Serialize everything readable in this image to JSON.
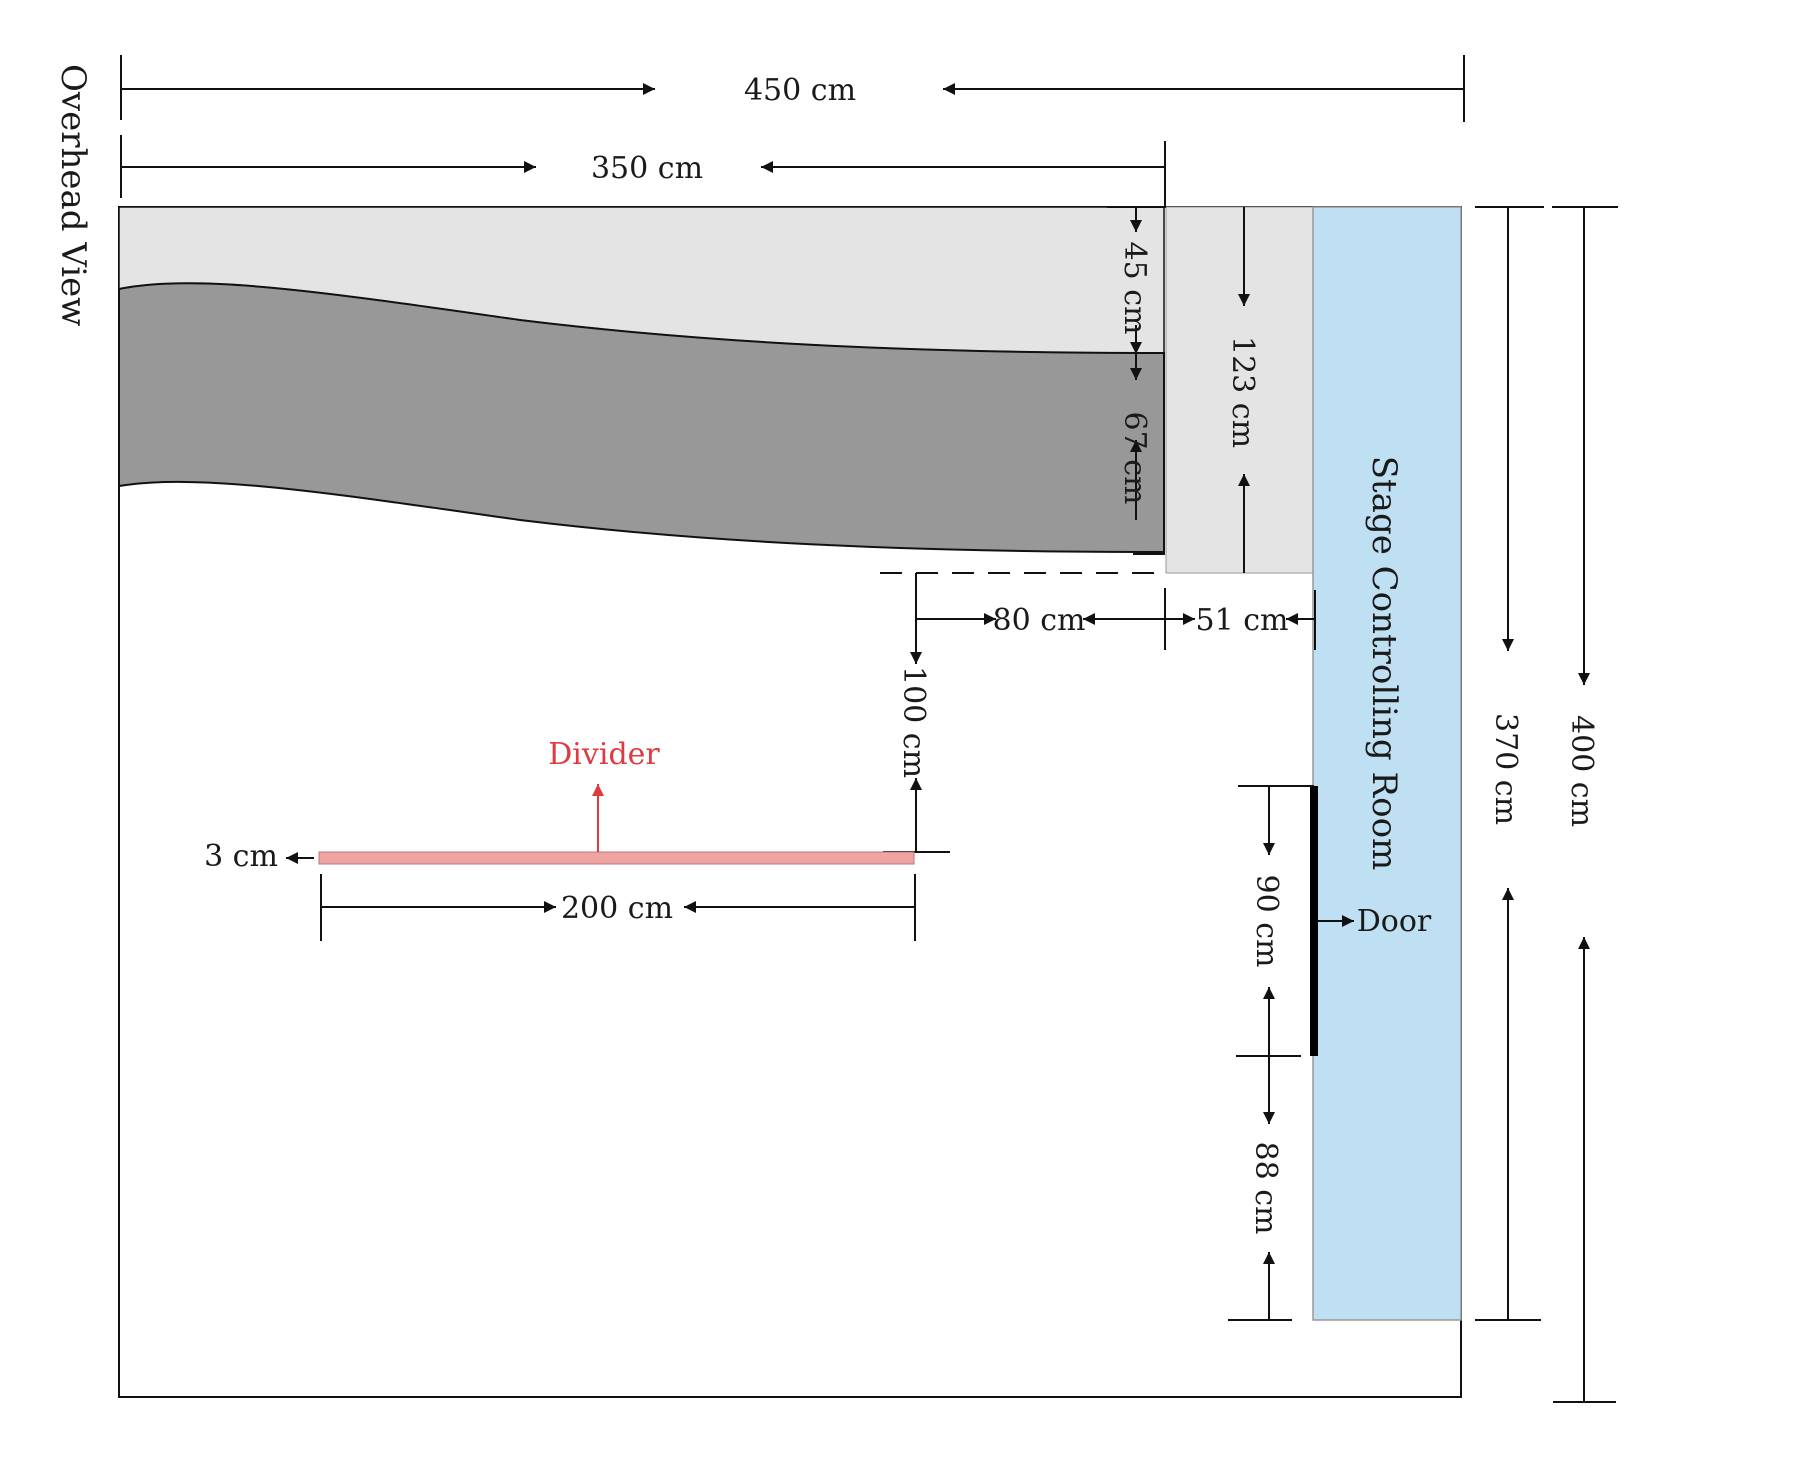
{
  "title": "Overhead View",
  "rooms": {
    "stage_control": "Stage Controlling Room"
  },
  "labels": {
    "divider": "Divider",
    "door": "Door"
  },
  "dimensions": {
    "total_width": "450 cm",
    "stage_width": "350 cm",
    "light_band": "45 cm",
    "dark_band": "67 cm",
    "corridor_depth": "123 cm",
    "gap_to_corridor": "80 cm",
    "corridor_width": "51 cm",
    "stage_to_divider": "100 cm",
    "divider_thickness": "3 cm",
    "divider_length": "200 cm",
    "door_width": "90 cm",
    "door_to_wall": "88 cm",
    "control_room_length": "370 cm",
    "total_depth": "400 cm"
  },
  "colors": {
    "light_gray": "#e4e4e4",
    "dark_gray": "#989898",
    "control_room": "#bfe0f2",
    "divider": "#f0a3a3",
    "divider_label": "#e0393e"
  }
}
